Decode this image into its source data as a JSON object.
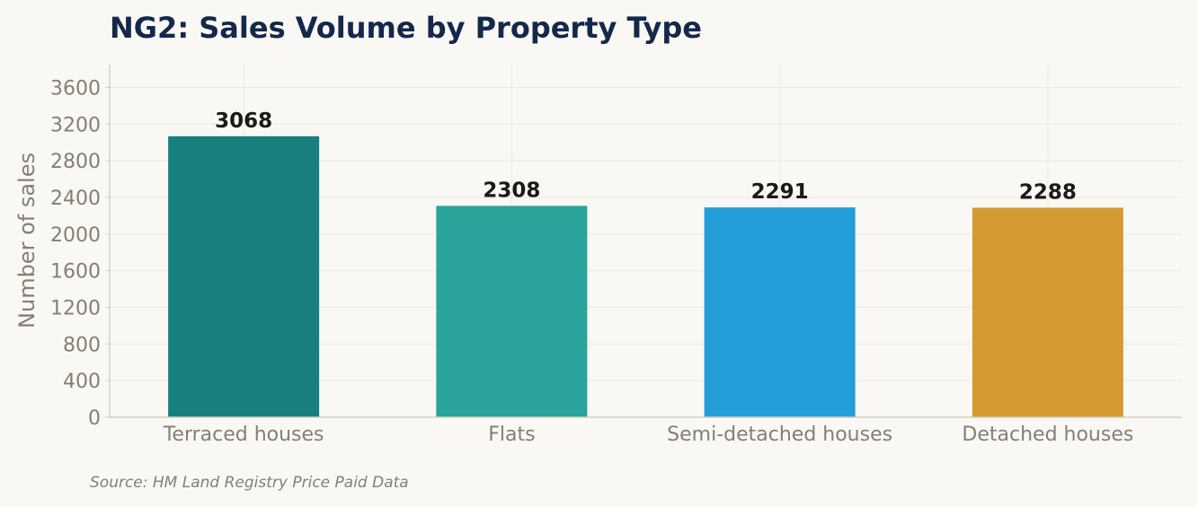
{
  "chart_data": {
    "type": "bar",
    "title": "NG2: Sales Volume by Property Type",
    "ylabel": "Number of sales",
    "xlabel": "",
    "categories": [
      "Terraced houses",
      "Flats",
      "Semi-detached houses",
      "Detached houses"
    ],
    "values": [
      3068,
      2308,
      2291,
      2288
    ],
    "colors": [
      "#17807e",
      "#2aa39b",
      "#239ed9",
      "#d69a34"
    ],
    "ylim": [
      0,
      3850
    ],
    "yticks": [
      0,
      400,
      800,
      1200,
      1600,
      2000,
      2400,
      2800,
      3200,
      3600
    ],
    "grid": true,
    "data_labels": true,
    "source": "Source: HM Land Registry Price Paid Data"
  }
}
